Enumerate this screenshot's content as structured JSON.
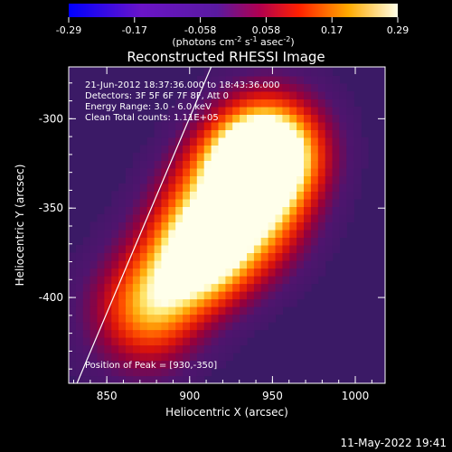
{
  "chart_data": {
    "type": "heatmap",
    "title": "Reconstructed RHESSI Image",
    "xlabel": "Heliocentric X (arcsec)",
    "ylabel": "Heliocentric Y (arcsec)",
    "xlim": [
      827,
      1018
    ],
    "ylim": [
      -448,
      -271
    ],
    "x_ticks": [
      850,
      900,
      950,
      1000
    ],
    "y_ticks": [
      -300,
      -350,
      -400
    ],
    "colorbar": {
      "ticks": [
        "-0.29",
        "-0.17",
        "-0.058",
        "0.058",
        "0.17",
        "0.29"
      ],
      "range": [
        -0.29,
        0.29
      ],
      "unit_text": "(photons cm",
      "unit_exp1": "-2",
      "unit_mid": " s",
      "unit_exp2": "-1",
      "unit_mid2": " asec",
      "unit_exp3": "-2",
      "unit_close": ")"
    },
    "sources": [
      {
        "x": 930,
        "y": -350,
        "intensity": 0.29
      },
      {
        "x": 938,
        "y": -322,
        "intensity": 0.26
      },
      {
        "x": 905,
        "y": -377,
        "intensity": 0.24
      },
      {
        "x": 878,
        "y": -403,
        "intensity": 0.17
      },
      {
        "x": 955,
        "y": -318,
        "intensity": 0.16
      }
    ],
    "limb_line": {
      "x_start": 832,
      "y_start": -448,
      "x_end": 913,
      "y_end": -271
    }
  },
  "annotations": [
    "21-Jun-2012 18:37:36.000 to 18:43:36.000",
    "Detectors: 3F 5F 6F 7F 8F, Att 0",
    "Energy Range: 3.0 - 6.0 keV",
    "Clean     Total counts: 1.11E+05"
  ],
  "peak_label": "Position of Peak = [930,-350]",
  "timestamp": "11-May-2022 19:41"
}
